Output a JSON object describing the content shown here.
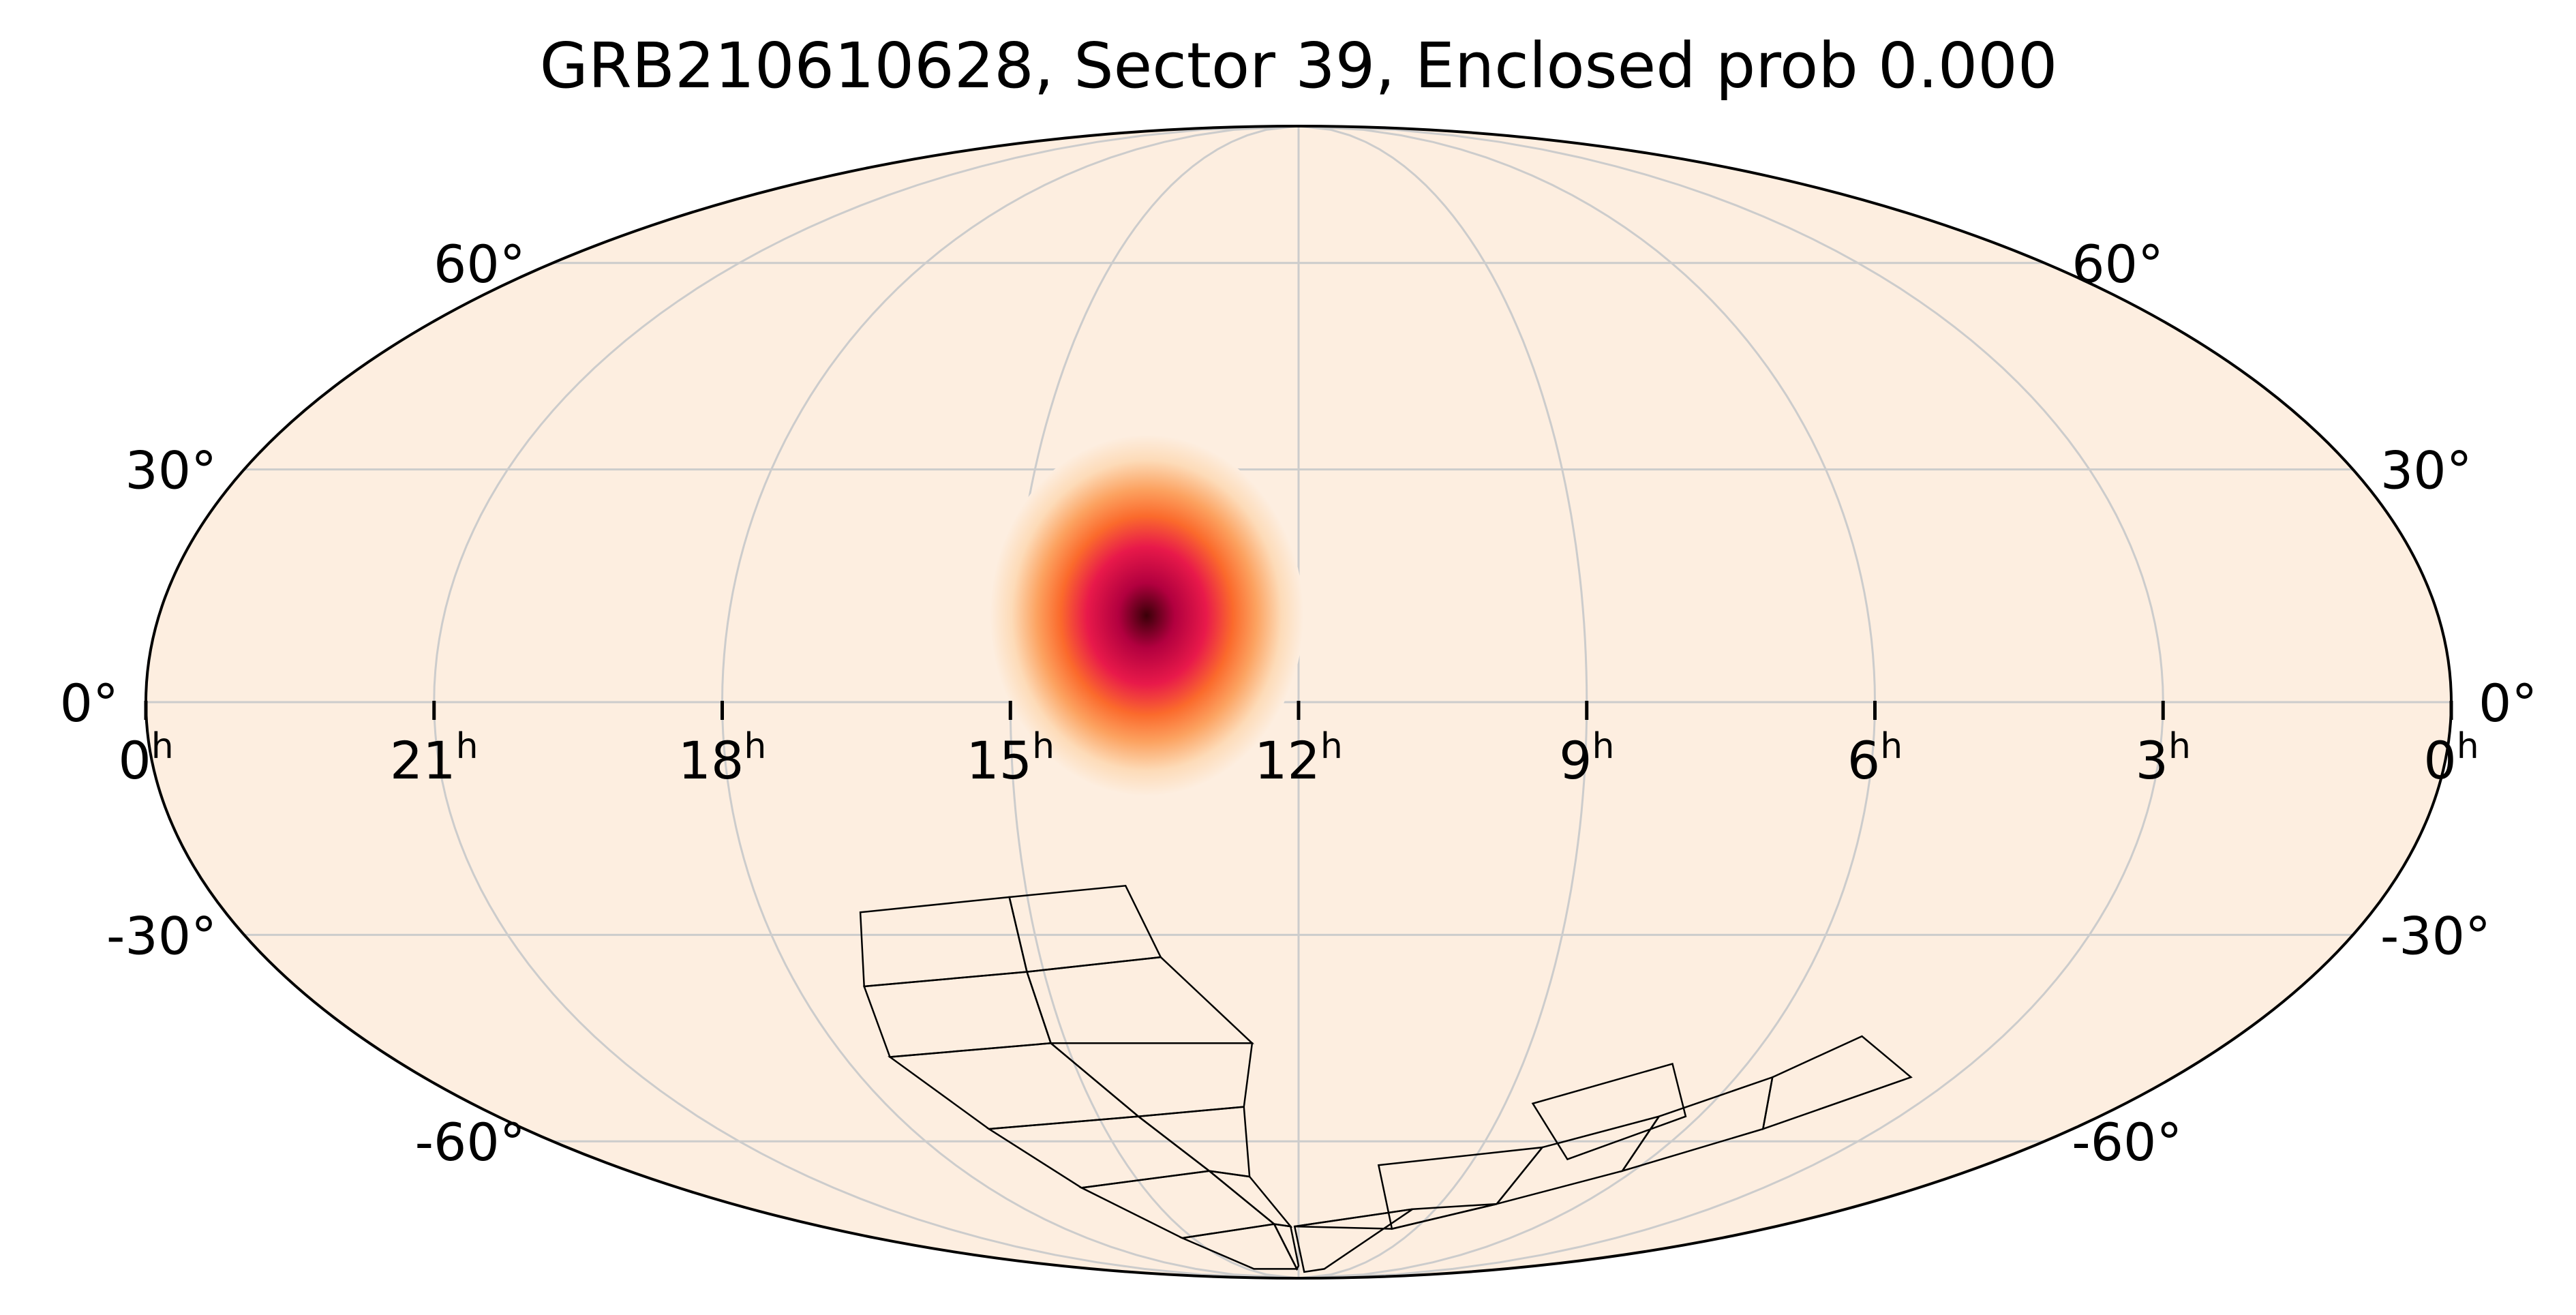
{
  "chart_data": {
    "type": "heatmap",
    "projection": "mollweide",
    "title": "GRB210610628, Sector 39, Enclosed prob 0.000",
    "grid": true,
    "ra_ticks": [
      {
        "ra_hours": 24,
        "value": "0",
        "sup": "h"
      },
      {
        "ra_hours": 21,
        "value": "21",
        "sup": "h"
      },
      {
        "ra_hours": 18,
        "value": "18",
        "sup": "h"
      },
      {
        "ra_hours": 15,
        "value": "15",
        "sup": "h"
      },
      {
        "ra_hours": 12,
        "value": "12",
        "sup": "h"
      },
      {
        "ra_hours": 9,
        "value": "9",
        "sup": "h"
      },
      {
        "ra_hours": 6,
        "value": "6",
        "sup": "h"
      },
      {
        "ra_hours": 3,
        "value": "3",
        "sup": "h"
      },
      {
        "ra_hours": 0,
        "value": "0",
        "sup": "h"
      }
    ],
    "dec_ticks": [
      {
        "dec": 60,
        "label": "60°"
      },
      {
        "dec": 30,
        "label": "30°"
      },
      {
        "dec": 0,
        "label": "0°"
      },
      {
        "dec": -30,
        "label": "-30°"
      },
      {
        "dec": -60,
        "label": "-60°"
      }
    ],
    "probability_peak": {
      "ra_hours": 13.6,
      "dec": 11
    },
    "colormap": [
      "#fdeee0",
      "#fddbb8",
      "#fca260",
      "#fb6a2c",
      "#e8194a",
      "#b2003f",
      "#3a0008"
    ],
    "sector_quads": [
      [
        [
          16.9,
          -27
        ],
        [
          15.2,
          -25
        ],
        [
          15.2,
          -35
        ],
        [
          17.2,
          -37
        ]
      ],
      [
        [
          15.2,
          -25
        ],
        [
          13.9,
          -23.5
        ],
        [
          13.6,
          -33
        ],
        [
          15.2,
          -35
        ]
      ],
      [
        [
          17.2,
          -37
        ],
        [
          15.2,
          -35
        ],
        [
          15.2,
          -45
        ],
        [
          17.4,
          -47
        ]
      ],
      [
        [
          15.2,
          -35
        ],
        [
          13.6,
          -33
        ],
        [
          12.6,
          -45
        ],
        [
          15.2,
          -45
        ]
      ],
      [
        [
          17.4,
          -47
        ],
        [
          15.2,
          -45
        ],
        [
          14.4,
          -56
        ],
        [
          16.8,
          -58
        ]
      ],
      [
        [
          15.2,
          -45
        ],
        [
          12.6,
          -45
        ],
        [
          12.8,
          -54.5
        ],
        [
          14.4,
          -56
        ]
      ],
      [
        [
          16.8,
          -58
        ],
        [
          14.4,
          -56
        ],
        [
          13.6,
          -65
        ],
        [
          16.2,
          -68
        ]
      ],
      [
        [
          14.4,
          -56
        ],
        [
          12.8,
          -54.5
        ],
        [
          12.9,
          -66
        ],
        [
          13.6,
          -65
        ]
      ],
      [
        [
          16.2,
          -68
        ],
        [
          13.6,
          -65
        ],
        [
          12.6,
          -75
        ],
        [
          15.3,
          -78
        ]
      ],
      [
        [
          13.6,
          -65
        ],
        [
          12.9,
          -66
        ],
        [
          12.2,
          -75.5
        ],
        [
          12.6,
          -75
        ]
      ],
      [
        [
          15.3,
          -78
        ],
        [
          12.6,
          -75
        ],
        [
          12.1,
          -86
        ],
        [
          14.6,
          -86
        ]
      ],
      [
        [
          12.6,
          -75
        ],
        [
          12.2,
          -75.5
        ],
        [
          12.0,
          -85
        ],
        [
          12.1,
          -86
        ]
      ],
      [
        [
          11.6,
          -87
        ],
        [
          12.1,
          -75.5
        ],
        [
          9.5,
          -72
        ],
        [
          10.5,
          -86
        ]
      ],
      [
        [
          9.5,
          -72
        ],
        [
          12.1,
          -75.5
        ],
        [
          9.6,
          -76
        ],
        [
          7.8,
          -71
        ]
      ],
      [
        [
          9.6,
          -76
        ],
        [
          7.8,
          -71
        ],
        [
          8.0,
          -61
        ],
        [
          10.6,
          -64
        ]
      ],
      [
        [
          7.8,
          -71
        ],
        [
          6.2,
          -65
        ],
        [
          6.6,
          -56
        ],
        [
          8.0,
          -61
        ]
      ],
      [
        [
          6.2,
          -65
        ],
        [
          4.8,
          -58
        ],
        [
          5.5,
          -50
        ],
        [
          6.6,
          -56
        ]
      ],
      [
        [
          4.8,
          -58
        ],
        [
          3.6,
          -50
        ],
        [
          4.8,
          -44
        ],
        [
          5.5,
          -50
        ]
      ],
      [
        [
          7.4,
          -63
        ],
        [
          6.2,
          -56
        ],
        [
          7.0,
          -48
        ],
        [
          8.6,
          -54
        ]
      ]
    ]
  }
}
